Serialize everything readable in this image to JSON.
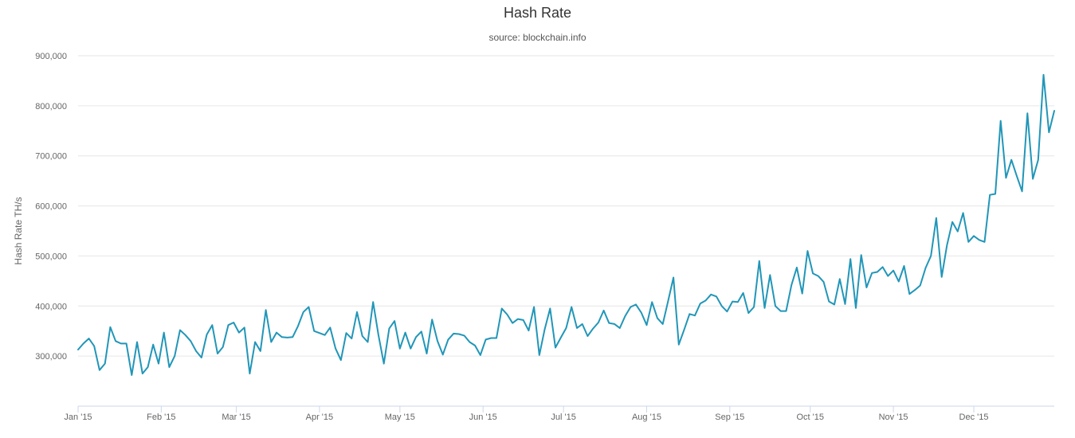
{
  "chart_data": {
    "type": "line",
    "title": "Hash Rate",
    "subtitle": "source: blockchain.info",
    "ylabel": "Hash Rate TH/s",
    "xlabel": "",
    "ylim": [
      200000,
      900000
    ],
    "yticks": [
      300000,
      400000,
      500000,
      600000,
      700000,
      800000,
      900000
    ],
    "ytick_labels": [
      "300,000",
      "400,000",
      "500,000",
      "600,000",
      "700,000",
      "800,000",
      "900,000"
    ],
    "x_ticks": [
      {
        "date": "2015-01-01",
        "label": "Jan '15"
      },
      {
        "date": "2015-02-01",
        "label": "Feb '15"
      },
      {
        "date": "2015-03-01",
        "label": "Mar '15"
      },
      {
        "date": "2015-04-01",
        "label": "Apr '15"
      },
      {
        "date": "2015-05-01",
        "label": "May '15"
      },
      {
        "date": "2015-06-01",
        "label": "Jun '15"
      },
      {
        "date": "2015-07-01",
        "label": "Jul '15"
      },
      {
        "date": "2015-08-01",
        "label": "Aug '15"
      },
      {
        "date": "2015-09-01",
        "label": "Sep '15"
      },
      {
        "date": "2015-10-01",
        "label": "Oct '15"
      },
      {
        "date": "2015-11-01",
        "label": "Nov '15"
      },
      {
        "date": "2015-12-01",
        "label": "Dec '15"
      }
    ],
    "xlim": [
      "2015-01-01",
      "2015-12-31"
    ],
    "grid": true,
    "legend": "none",
    "colors": {
      "line": "#2196b8",
      "grid": "#e6e6e6",
      "axis": "#ccd6eb",
      "text": "#666666"
    },
    "series": [
      {
        "x": [
          "2015-01-01",
          "2015-01-03",
          "2015-01-05",
          "2015-01-07",
          "2015-01-09",
          "2015-01-11",
          "2015-01-13",
          "2015-01-15",
          "2015-01-17",
          "2015-01-19",
          "2015-01-21",
          "2015-01-23",
          "2015-01-25",
          "2015-01-27",
          "2015-01-29",
          "2015-01-31",
          "2015-02-02",
          "2015-02-04",
          "2015-02-06",
          "2015-02-08",
          "2015-02-10",
          "2015-02-12",
          "2015-02-14",
          "2015-02-16",
          "2015-02-18",
          "2015-02-20",
          "2015-02-22",
          "2015-02-24",
          "2015-02-26",
          "2015-02-28",
          "2015-03-02",
          "2015-03-04",
          "2015-03-06",
          "2015-03-08",
          "2015-03-10",
          "2015-03-12",
          "2015-03-14",
          "2015-03-16",
          "2015-03-18",
          "2015-03-20",
          "2015-03-22",
          "2015-03-24",
          "2015-03-26",
          "2015-03-28",
          "2015-03-30",
          "2015-04-01",
          "2015-04-03",
          "2015-04-05",
          "2015-04-07",
          "2015-04-09",
          "2015-04-11",
          "2015-04-13",
          "2015-04-15",
          "2015-04-17",
          "2015-04-19",
          "2015-04-21",
          "2015-04-23",
          "2015-04-25",
          "2015-04-27",
          "2015-04-29",
          "2015-05-01",
          "2015-05-03",
          "2015-05-05",
          "2015-05-07",
          "2015-05-09",
          "2015-05-11",
          "2015-05-13",
          "2015-05-15",
          "2015-05-17",
          "2015-05-19",
          "2015-05-21",
          "2015-05-23",
          "2015-05-25",
          "2015-05-27",
          "2015-05-29",
          "2015-05-31",
          "2015-06-02",
          "2015-06-04",
          "2015-06-06",
          "2015-06-08",
          "2015-06-10",
          "2015-06-12",
          "2015-06-14",
          "2015-06-16",
          "2015-06-18",
          "2015-06-20",
          "2015-06-22",
          "2015-06-24",
          "2015-06-26",
          "2015-06-28",
          "2015-06-30",
          "2015-07-02",
          "2015-07-04",
          "2015-07-06",
          "2015-07-08",
          "2015-07-10",
          "2015-07-12",
          "2015-07-14",
          "2015-07-16",
          "2015-07-18",
          "2015-07-20",
          "2015-07-22",
          "2015-07-24",
          "2015-07-26",
          "2015-07-28",
          "2015-07-30",
          "2015-08-01",
          "2015-08-03",
          "2015-08-05",
          "2015-08-07",
          "2015-08-09",
          "2015-08-11",
          "2015-08-13",
          "2015-08-15",
          "2015-08-17",
          "2015-08-19",
          "2015-08-21",
          "2015-08-23",
          "2015-08-25",
          "2015-08-27",
          "2015-08-29",
          "2015-08-31",
          "2015-09-02",
          "2015-09-04",
          "2015-09-06",
          "2015-09-08",
          "2015-09-10",
          "2015-09-12",
          "2015-09-14",
          "2015-09-16",
          "2015-09-18",
          "2015-09-20",
          "2015-09-22",
          "2015-09-24",
          "2015-09-26",
          "2015-09-28",
          "2015-09-30",
          "2015-10-02",
          "2015-10-04",
          "2015-10-06",
          "2015-10-08",
          "2015-10-10",
          "2015-10-12",
          "2015-10-14",
          "2015-10-16",
          "2015-10-18",
          "2015-10-20",
          "2015-10-22",
          "2015-10-24",
          "2015-10-26",
          "2015-10-28",
          "2015-10-30",
          "2015-11-01",
          "2015-11-03",
          "2015-11-05",
          "2015-11-07",
          "2015-11-09",
          "2015-11-11",
          "2015-11-13",
          "2015-11-15",
          "2015-11-17",
          "2015-11-19",
          "2015-11-21",
          "2015-11-23",
          "2015-11-25",
          "2015-11-27",
          "2015-11-29",
          "2015-12-01",
          "2015-12-03",
          "2015-12-05",
          "2015-12-07",
          "2015-12-09",
          "2015-12-11",
          "2015-12-13",
          "2015-12-15",
          "2015-12-17",
          "2015-12-19",
          "2015-12-21",
          "2015-12-23",
          "2015-12-25",
          "2015-12-27",
          "2015-12-29",
          "2015-12-31"
        ],
        "y": [
          313000,
          325000,
          335000,
          320000,
          272000,
          285000,
          358000,
          330000,
          325000,
          325000,
          262000,
          328000,
          265000,
          278000,
          323000,
          285000,
          347000,
          278000,
          300000,
          352000,
          342000,
          330000,
          310000,
          297000,
          343000,
          362000,
          305000,
          318000,
          362000,
          367000,
          347000,
          357000,
          265000,
          328000,
          310000,
          392000,
          328000,
          347000,
          338000,
          337000,
          338000,
          360000,
          388000,
          398000,
          350000,
          346000,
          342000,
          357000,
          315000,
          292000,
          346000,
          335000,
          388000,
          340000,
          328000,
          408000,
          342000,
          285000,
          355000,
          370000,
          315000,
          347000,
          315000,
          338000,
          349000,
          305000,
          373000,
          330000,
          303000,
          333000,
          345000,
          344000,
          341000,
          328000,
          321000,
          302000,
          333000,
          336000,
          336000,
          395000,
          383000,
          366000,
          374000,
          372000,
          351000,
          398000,
          302000,
          354000,
          395000,
          317000,
          337000,
          356000,
          398000,
          356000,
          364000,
          340000,
          355000,
          367000,
          391000,
          366000,
          364000,
          356000,
          380000,
          398000,
          403000,
          387000,
          362000,
          408000,
          376000,
          364000,
          410000,
          457000,
          323000,
          353000,
          384000,
          381000,
          405000,
          411000,
          423000,
          419000,
          400000,
          389000,
          409000,
          408000,
          426000,
          386000,
          398000,
          490000,
          396000,
          462000,
          400000,
          390000,
          390000,
          442000,
          477000,
          425000,
          510000,
          465000,
          460000,
          448000,
          409000,
          403000,
          454000,
          404000,
          494000,
          396000,
          502000,
          437000,
          466000,
          468000,
          478000,
          460000,
          471000,
          449000,
          480000,
          424000,
          432000,
          441000,
          476000,
          500000,
          576000,
          458000,
          522000,
          568000,
          549000,
          586000,
          528000,
          540000,
          532000,
          528000,
          622000,
          624000,
          770000,
          656000,
          692000,
          660000,
          629000,
          785000,
          654000,
          692000,
          862000,
          747000,
          790000
        ]
      }
    ]
  }
}
